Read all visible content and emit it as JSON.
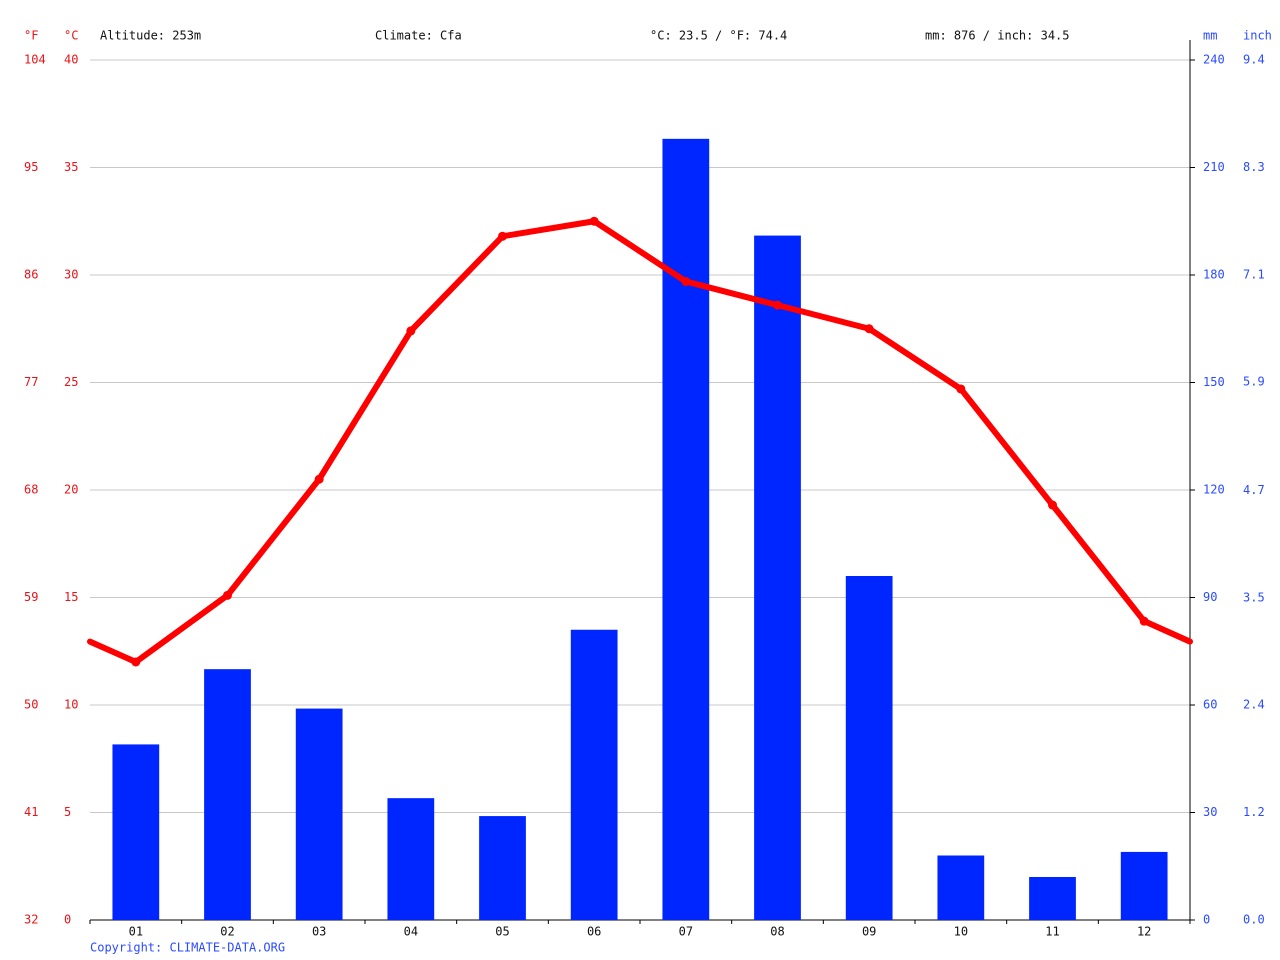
{
  "chart_data": {
    "type": "combo",
    "annotations": [
      "Altitude: 253m",
      "Climate: Cfa",
      "°C: 23.5 / °F: 74.4",
      "mm: 876 / inch: 34.5"
    ],
    "footer": "Copyright: CLIMATE-DATA.ORG",
    "categories": [
      "01",
      "02",
      "03",
      "04",
      "05",
      "06",
      "07",
      "08",
      "09",
      "10",
      "11",
      "12"
    ],
    "series": [
      {
        "type": "line",
        "color": "#ff0000",
        "values": [
          12.0,
          15.1,
          20.5,
          27.4,
          31.8,
          32.5,
          29.7,
          28.6,
          27.5,
          24.7,
          19.3,
          13.9
        ]
      },
      {
        "type": "bar",
        "axis": "y2",
        "color": "#0026ff",
        "values": [
          49,
          70,
          59,
          34,
          29,
          81,
          218,
          191,
          96,
          18,
          12,
          19
        ]
      }
    ],
    "y_label": "°C",
    "ylim": [
      0,
      40
    ],
    "yticks": [
      0,
      5,
      10,
      15,
      20,
      25,
      30,
      35,
      40
    ],
    "yf_label": "°F",
    "yflim": [
      32,
      104
    ],
    "yfticks": [
      32,
      41,
      50,
      59,
      68,
      77,
      86,
      95,
      104
    ],
    "y2_label": "mm",
    "y2lim": [
      0,
      240
    ],
    "y2ticks": [
      0,
      30,
      60,
      90,
      120,
      150,
      180,
      210,
      240
    ],
    "y3_label": "inch",
    "y3lim": [
      0,
      9.45
    ],
    "y3ticks": [
      {
        "value": 0,
        "label": "0.0"
      },
      {
        "value": 1.18,
        "label": "1.2"
      },
      {
        "value": 2.36,
        "label": "2.4"
      },
      {
        "value": 3.54,
        "label": "3.5"
      },
      {
        "value": 4.72,
        "label": "4.7"
      },
      {
        "value": 5.91,
        "label": "5.9"
      },
      {
        "value": 7.09,
        "label": "7.1"
      },
      {
        "value": 8.27,
        "label": "8.3"
      },
      {
        "value": 9.45,
        "label": "9.4"
      }
    ],
    "grid": true
  }
}
